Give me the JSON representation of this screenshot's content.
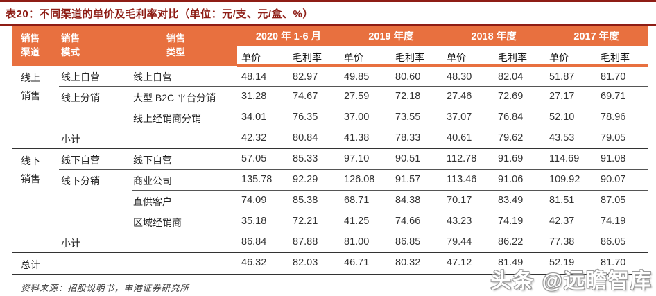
{
  "title": "表20：不同渠道的单价及毛利率对比（单位：元/支、元/盒、%）",
  "colors": {
    "accent_orange": "#e8703f",
    "title_red": "#8e1d15"
  },
  "header": {
    "col_channel": "销售\n渠道",
    "col_mode": "销售\n模式",
    "col_type": "销售\n类型",
    "periods": [
      "2020 年 1-6 月",
      "2019 年度",
      "2018 年度",
      "2017 年度"
    ],
    "sub_price": "单价",
    "sub_margin": "毛利率"
  },
  "rows": [
    {
      "channel": "线上\n销售",
      "mode": "线上自营",
      "type": "线上自营",
      "values": [
        "48.14",
        "82.97",
        "49.85",
        "80.60",
        "48.30",
        "82.04",
        "51.87",
        "81.70"
      ]
    },
    {
      "mode": "线上分销",
      "type": "大型 B2C 平台分销",
      "values": [
        "31.28",
        "74.67",
        "27.59",
        "72.18",
        "27.46",
        "72.69",
        "27.17",
        "69.71"
      ]
    },
    {
      "type": "线上经销商分销",
      "values": [
        "34.01",
        "76.35",
        "37.00",
        "73.55",
        "37.07",
        "76.84",
        "52.10",
        "78.96"
      ]
    },
    {
      "mode": "小计",
      "values": [
        "42.32",
        "80.84",
        "41.38",
        "78.33",
        "40.61",
        "79.62",
        "43.53",
        "79.05"
      ]
    },
    {
      "channel": "线下\n销售",
      "mode": "线下自营",
      "type": "线下自营",
      "values": [
        "57.05",
        "85.33",
        "97.10",
        "90.51",
        "112.78",
        "91.69",
        "114.69",
        "91.08"
      ]
    },
    {
      "mode": "线下分销",
      "type": "商业公司",
      "values": [
        "135.78",
        "92.29",
        "126.08",
        "91.57",
        "113.46",
        "91.06",
        "109.92",
        "90.07"
      ]
    },
    {
      "type": "直供客户",
      "values": [
        "74.09",
        "85.38",
        "68.71",
        "84.38",
        "70.17",
        "83.49",
        "81.51",
        "87.05"
      ]
    },
    {
      "type": "区域经销商",
      "values": [
        "35.18",
        "72.21",
        "41.25",
        "74.66",
        "43.23",
        "74.19",
        "42.37",
        "74.19"
      ]
    },
    {
      "mode": "小计",
      "values": [
        "86.84",
        "87.88",
        "81.00",
        "86.85",
        "79.44",
        "86.22",
        "77.38",
        "86.05"
      ]
    },
    {
      "channel": "总计",
      "values": [
        "46.32",
        "82.03",
        "46.71",
        "80.32",
        "47.12",
        "81.49",
        "52.19",
        "81.70"
      ]
    }
  ],
  "source": "资料来源：招股说明书，申港证券研究所",
  "watermark": "头条 @远瞻智库"
}
